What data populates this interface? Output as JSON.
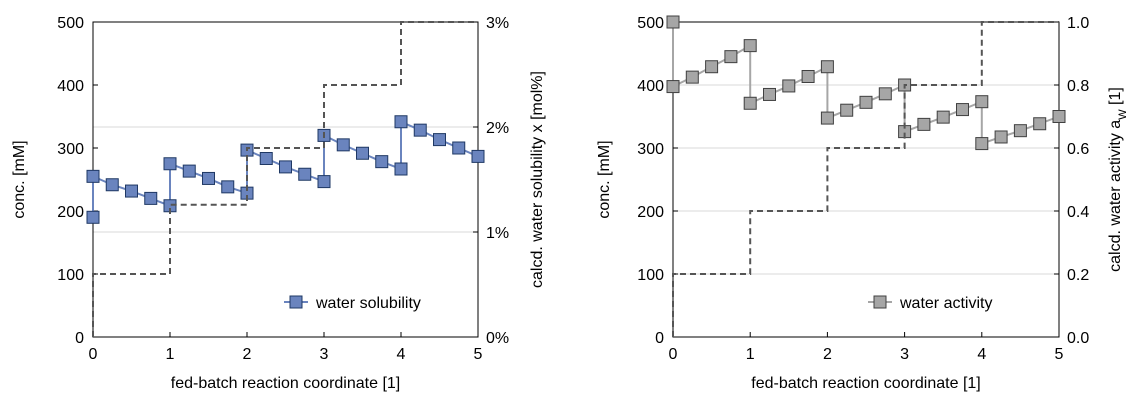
{
  "chart_data": [
    {
      "type": "line",
      "xlabel": "fed-batch reaction coordinate [1]",
      "ylabel": "conc. [mM]",
      "y2label_main": "calcd. water solubility x [mol%]",
      "xlim": [
        0,
        5
      ],
      "ylim": [
        0,
        500
      ],
      "y2lim": [
        0,
        3
      ],
      "x_ticks": [
        "0",
        "1",
        "2",
        "3",
        "4",
        "5"
      ],
      "y_ticks": [
        "0",
        "100",
        "200",
        "300",
        "400",
        "500"
      ],
      "y2_ticks": [
        "0%",
        "1%",
        "2%",
        "3%"
      ],
      "grid": "horizontal",
      "legend_position": "bottom-right",
      "series": [
        {
          "name": "water solubility",
          "axis": "right",
          "color": "#6a84be",
          "stroke": "#1f3864",
          "marker": "square",
          "x": [
            0,
            0,
            0.25,
            0.5,
            0.75,
            1,
            1,
            1.25,
            1.5,
            1.75,
            2,
            2,
            2.25,
            2.5,
            2.75,
            3,
            3,
            3.25,
            3.5,
            3.75,
            4,
            4,
            4.25,
            4.5,
            4.75,
            5
          ],
          "y": [
            1.14,
            1.53,
            1.45,
            1.39,
            1.32,
            1.25,
            1.65,
            1.58,
            1.51,
            1.43,
            1.37,
            1.78,
            1.7,
            1.62,
            1.55,
            1.48,
            1.92,
            1.83,
            1.75,
            1.67,
            1.6,
            2.05,
            1.97,
            1.88,
            1.8,
            1.72
          ]
        },
        {
          "name": "",
          "axis": "left",
          "style": "dashed",
          "color": "#555555",
          "x": [
            0,
            0,
            1,
            1,
            2,
            2,
            3,
            3,
            4,
            4,
            5
          ],
          "y": [
            0,
            100,
            100,
            210,
            210,
            300,
            300,
            400,
            400,
            500,
            500
          ]
        }
      ]
    },
    {
      "type": "line",
      "xlabel": "fed-batch reaction coordinate [1]",
      "ylabel": "conc. [mM]",
      "y2label_main": "calcd. water activity a",
      "y2label_sub": "W",
      "y2label_end": " [1]",
      "xlim": [
        0,
        5
      ],
      "ylim": [
        0,
        500
      ],
      "y2lim": [
        0,
        1
      ],
      "x_ticks": [
        "0",
        "1",
        "2",
        "3",
        "4",
        "5"
      ],
      "y_ticks": [
        "0",
        "100",
        "200",
        "300",
        "400",
        "500"
      ],
      "y2_ticks": [
        "0.0",
        "0.2",
        "0.4",
        "0.6",
        "0.8",
        "1.0"
      ],
      "grid": "horizontal",
      "legend_position": "bottom-right",
      "series": [
        {
          "name": "water activity",
          "axis": "right",
          "color": "#a6a6a6",
          "stroke": "#404040",
          "marker": "square",
          "x": [
            0,
            0,
            0.25,
            0.5,
            0.75,
            1,
            1,
            1.25,
            1.5,
            1.75,
            2,
            2,
            2.25,
            2.5,
            2.75,
            3,
            3,
            3.25,
            3.5,
            3.75,
            4,
            4,
            4.25,
            4.5,
            4.75,
            5
          ],
          "y": [
            1.0,
            0.795,
            0.825,
            0.858,
            0.89,
            0.925,
            0.742,
            0.77,
            0.797,
            0.827,
            0.858,
            0.695,
            0.72,
            0.745,
            0.772,
            0.8,
            0.652,
            0.675,
            0.698,
            0.722,
            0.747,
            0.614,
            0.635,
            0.655,
            0.677,
            0.7
          ]
        },
        {
          "name": "",
          "axis": "left",
          "style": "dashed",
          "color": "#555555",
          "x": [
            0,
            0,
            1,
            1,
            2,
            2,
            3,
            3,
            4,
            4,
            5
          ],
          "y": [
            0,
            100,
            100,
            200,
            200,
            300,
            300,
            400,
            400,
            500,
            500
          ]
        }
      ]
    }
  ]
}
